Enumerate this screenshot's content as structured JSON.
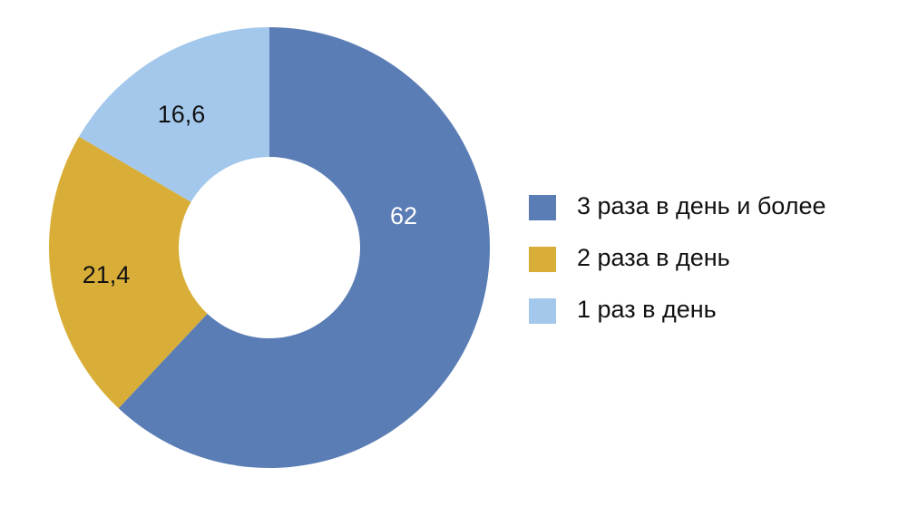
{
  "chart_data": {
    "type": "donut",
    "categories": [
      "3 раза в день и более",
      "2 раза в день",
      "1 раз в день"
    ],
    "values": [
      62,
      21.4,
      16.6
    ],
    "value_labels": [
      "62",
      "21,4",
      "16,6"
    ],
    "colors": [
      "#5a7db5",
      "#d9ae38",
      "#a3c8ec"
    ],
    "legend": "right"
  }
}
